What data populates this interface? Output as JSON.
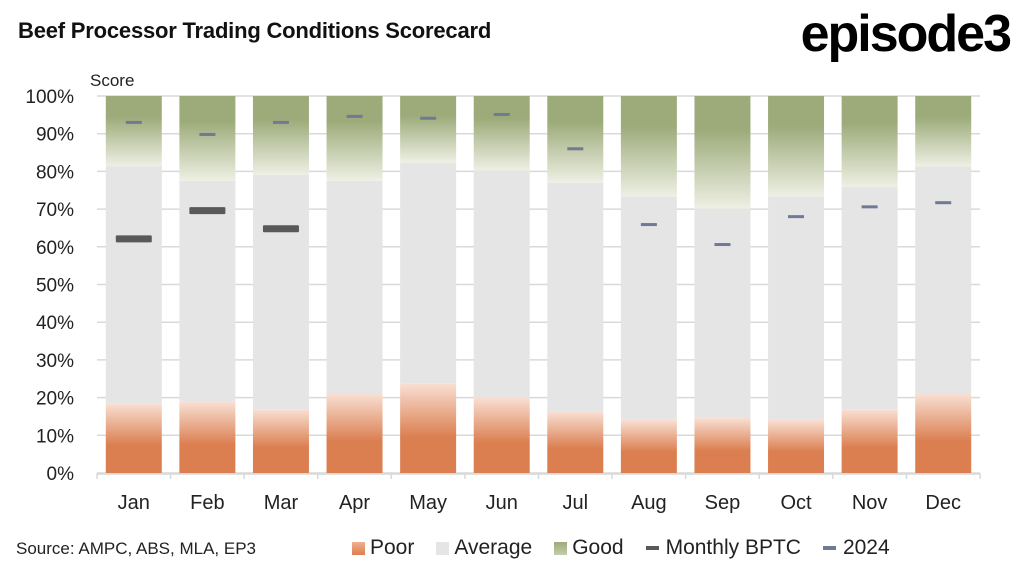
{
  "title": "Beef Processor Trading Conditions Scorecard",
  "logo": "episode3",
  "source": "Source: AMPC, ABS, MLA, EP3",
  "colors": {
    "poor": "#db7f50",
    "poor_light": "#f9e0d4",
    "average": "#e5e5e5",
    "good": "#9dab7a",
    "good_light": "#eef0e4",
    "monthly": "#595959",
    "y2024": "#6e7a96",
    "grid": "#d9d9d9"
  },
  "chart_data": {
    "type": "bar",
    "stacked": true,
    "title": "Beef Processor Trading Conditions Scorecard",
    "ylabel": "Score",
    "ylim": [
      0,
      100
    ],
    "yticks": [
      "0%",
      "10%",
      "20%",
      "30%",
      "40%",
      "50%",
      "60%",
      "70%",
      "80%",
      "90%",
      "100%"
    ],
    "grid": true,
    "legend_position": "bottom",
    "categories": [
      "Jan",
      "Feb",
      "Mar",
      "Apr",
      "May",
      "Jun",
      "Jul",
      "Aug",
      "Sep",
      "Oct",
      "Nov",
      "Dec"
    ],
    "series": [
      {
        "name": "Poor",
        "kind": "bar",
        "values": [
          18.5,
          18.9,
          16.9,
          21.1,
          23.8,
          20.1,
          16.3,
          14.1,
          14.7,
          14.1,
          16.9,
          21.1
        ]
      },
      {
        "name": "Average",
        "kind": "bar",
        "values": [
          62.8,
          58.6,
          62.2,
          56.4,
          58.5,
          60.1,
          60.7,
          59.2,
          55.4,
          59.2,
          59.0,
          60.2
        ]
      },
      {
        "name": "Good",
        "kind": "bar",
        "values": [
          18.7,
          22.5,
          20.9,
          22.5,
          17.7,
          19.8,
          23.0,
          26.7,
          29.9,
          26.7,
          24.1,
          18.7
        ]
      },
      {
        "name": "Monthly BPTC",
        "kind": "marker",
        "values": [
          62.1,
          69.6,
          64.8,
          null,
          null,
          null,
          null,
          null,
          null,
          null,
          null,
          null
        ]
      },
      {
        "name": "2024",
        "kind": "marker",
        "values": [
          93.0,
          89.8,
          93.0,
          94.6,
          94.1,
          95.1,
          86.0,
          65.9,
          60.6,
          68.0,
          70.6,
          71.7
        ]
      }
    ]
  }
}
